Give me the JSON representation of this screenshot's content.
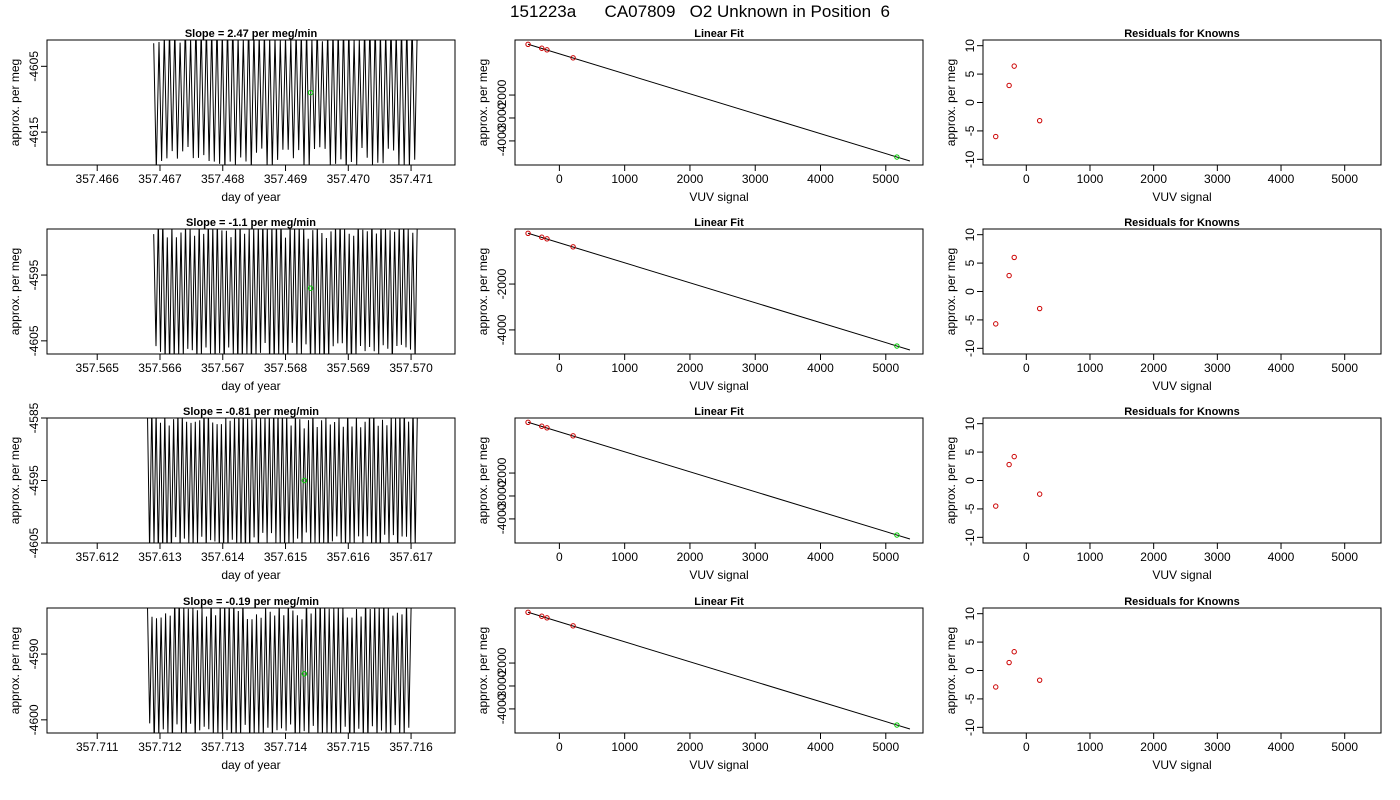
{
  "figure": {
    "title": "151223a      CA07809   O2 Unknown in Position  6"
  },
  "chart_data": [
    {
      "type": "line",
      "panel": "row1-trace",
      "title": "Slope =  2.47  per meg/min",
      "xlabel": "day of year",
      "ylabel": "approx. per meg",
      "xlim": [
        357.4652,
        357.4717
      ],
      "ylim": [
        -4620,
        -4601
      ],
      "x_ticks": [
        "357.466",
        "357.467",
        "357.468",
        "357.469",
        "357.470",
        "357.471"
      ],
      "y_ticks": [
        "-4605",
        "-4615"
      ],
      "trace": {
        "x_start": 357.4669,
        "x_end": 357.4711,
        "cycles": 50,
        "y_center": -4609,
        "y_min": -4620,
        "y_max": -4599,
        "color": "#000000"
      },
      "marker": {
        "x": 357.4694,
        "y": -4609,
        "color": "#00cc00"
      }
    },
    {
      "type": "scatter",
      "panel": "row1-fit",
      "title": "Linear Fit",
      "xlabel": "VUV signal",
      "ylabel": "approx. per meg",
      "xlim": [
        -680,
        5570
      ],
      "ylim": [
        -5050,
        400
      ],
      "x_ticks": [
        "0",
        "1000",
        "2000",
        "3000",
        "4000",
        "5000"
      ],
      "y_ticks": [
        "-2000",
        "-3000",
        "-4000"
      ],
      "fit_line": {
        "x": [
          -480,
          5370
        ],
        "y": [
          213,
          -4876
        ],
        "color": "#000000"
      },
      "knowns": {
        "x": [
          -480,
          -270,
          -190,
          210
        ],
        "y": [
          213,
          40,
          -30,
          -377
        ],
        "color": "#cc0000"
      },
      "unknown": {
        "x": 5170,
        "y": -4702,
        "color": "#00cc00"
      }
    },
    {
      "type": "scatter",
      "panel": "row1-residuals",
      "title": "Residuals for Knowns",
      "xlabel": "VUV signal",
      "ylabel": "approx. per meg",
      "xlim": [
        -680,
        5570
      ],
      "ylim": [
        -11,
        11
      ],
      "x_ticks": [
        "0",
        "1000",
        "2000",
        "3000",
        "4000",
        "5000"
      ],
      "y_ticks": [
        "-10",
        "-5",
        "0",
        "5",
        "10"
      ],
      "points": {
        "x": [
          -480,
          -270,
          -190,
          210
        ],
        "y": [
          -6.0,
          3.0,
          6.4,
          -3.2
        ],
        "color": "#cc0000"
      }
    },
    {
      "type": "line",
      "panel": "row2-trace",
      "title": "Slope =  -1.1  per meg/min",
      "xlabel": "day of year",
      "ylabel": "approx. per meg",
      "xlim": [
        357.5642,
        357.5707
      ],
      "ylim": [
        -4607,
        -4588
      ],
      "x_ticks": [
        "357.565",
        "357.566",
        "357.567",
        "357.568",
        "357.569",
        "357.570"
      ],
      "y_ticks": [
        "-4595",
        "-4605"
      ],
      "trace": {
        "x_start": 357.5659,
        "x_end": 357.5701,
        "cycles": 58,
        "y_center": -4597,
        "y_min": -4608,
        "y_max": -4587,
        "color": "#000000"
      },
      "marker": {
        "x": 357.5684,
        "y": -4597,
        "color": "#00cc00"
      }
    },
    {
      "type": "scatter",
      "panel": "row2-fit",
      "title": "Linear Fit",
      "xlabel": "VUV signal",
      "ylabel": "approx. per meg",
      "xlim": [
        -680,
        5570
      ],
      "ylim": [
        -5050,
        400
      ],
      "x_ticks": [
        "0",
        "1000",
        "2000",
        "3000",
        "4000",
        "5000"
      ],
      "y_ticks": [
        "-2000",
        "-4000"
      ],
      "fit_line": {
        "x": [
          -480,
          5370
        ],
        "y": [
          213,
          -4876
        ],
        "color": "#000000"
      },
      "knowns": {
        "x": [
          -480,
          -270,
          -190,
          210
        ],
        "y": [
          213,
          40,
          -30,
          -377
        ],
        "color": "#cc0000"
      },
      "unknown": {
        "x": 5170,
        "y": -4702,
        "color": "#00cc00"
      }
    },
    {
      "type": "scatter",
      "panel": "row2-residuals",
      "title": "Residuals for Knowns",
      "xlabel": "VUV signal",
      "ylabel": "approx. per meg",
      "xlim": [
        -680,
        5570
      ],
      "ylim": [
        -11,
        11
      ],
      "x_ticks": [
        "0",
        "1000",
        "2000",
        "3000",
        "4000",
        "5000"
      ],
      "y_ticks": [
        "-10",
        "-5",
        "0",
        "5",
        "10"
      ],
      "points": {
        "x": [
          -480,
          -270,
          -190,
          210
        ],
        "y": [
          -5.7,
          2.8,
          6.0,
          -3.0
        ],
        "color": "#cc0000"
      }
    },
    {
      "type": "line",
      "panel": "row3-trace",
      "title": "Slope =  -0.81  per meg/min",
      "xlabel": "day of year",
      "ylabel": "approx. per meg",
      "xlim": [
        357.6112,
        357.6177
      ],
      "ylim": [
        -4605,
        -4585
      ],
      "x_ticks": [
        "357.612",
        "357.613",
        "357.614",
        "357.615",
        "357.616",
        "357.617"
      ],
      "y_ticks": [
        "-4585",
        "-4595",
        "-4605"
      ],
      "trace": {
        "x_start": 357.6128,
        "x_end": 357.6171,
        "cycles": 62,
        "y_center": -4595,
        "y_min": -4606,
        "y_max": -4584,
        "color": "#000000"
      },
      "marker": {
        "x": 357.6153,
        "y": -4595,
        "color": "#00cc00"
      }
    },
    {
      "type": "scatter",
      "panel": "row3-fit",
      "title": "Linear Fit",
      "xlabel": "VUV signal",
      "ylabel": "approx. per meg",
      "xlim": [
        -680,
        5570
      ],
      "ylim": [
        -5050,
        400
      ],
      "x_ticks": [
        "0",
        "1000",
        "2000",
        "3000",
        "4000",
        "5000"
      ],
      "y_ticks": [
        "-2000",
        "-3000",
        "-4000"
      ],
      "fit_line": {
        "x": [
          -480,
          5370
        ],
        "y": [
          213,
          -4876
        ],
        "color": "#000000"
      },
      "knowns": {
        "x": [
          -480,
          -270,
          -190,
          210
        ],
        "y": [
          213,
          40,
          -30,
          -377
        ],
        "color": "#cc0000"
      },
      "unknown": {
        "x": 5170,
        "y": -4702,
        "color": "#00cc00"
      }
    },
    {
      "type": "scatter",
      "panel": "row3-residuals",
      "title": "Residuals for Knowns",
      "xlabel": "VUV signal",
      "ylabel": "approx. per meg",
      "xlim": [
        -680,
        5570
      ],
      "ylim": [
        -11,
        11
      ],
      "x_ticks": [
        "0",
        "1000",
        "2000",
        "3000",
        "4000",
        "5000"
      ],
      "y_ticks": [
        "-10",
        "-5",
        "0",
        "5",
        "10"
      ],
      "points": {
        "x": [
          -480,
          -270,
          -190,
          210
        ],
        "y": [
          -4.5,
          2.8,
          4.2,
          -2.4
        ],
        "color": "#cc0000"
      }
    },
    {
      "type": "line",
      "panel": "row4-trace",
      "title": "Slope =  -0.19  per meg/min",
      "xlabel": "day of year",
      "ylabel": "approx. per meg",
      "xlim": [
        357.7102,
        357.7167
      ],
      "ylim": [
        -4602,
        -4583
      ],
      "x_ticks": [
        "357.711",
        "357.712",
        "357.713",
        "357.714",
        "357.715",
        "357.716"
      ],
      "y_ticks": [
        "-4590",
        "-4600"
      ],
      "trace": {
        "x_start": 357.7118,
        "x_end": 357.716,
        "cycles": 58,
        "y_center": -4593,
        "y_min": -4603,
        "y_max": -4582,
        "color": "#000000"
      },
      "marker": {
        "x": 357.7143,
        "y": -4593,
        "color": "#00cc00"
      }
    },
    {
      "type": "scatter",
      "panel": "row4-fit",
      "title": "Linear Fit",
      "xlabel": "VUV signal",
      "ylabel": "approx. per meg",
      "xlim": [
        -680,
        5570
      ],
      "ylim": [
        -5050,
        400
      ],
      "x_ticks": [
        "0",
        "1000",
        "2000",
        "3000",
        "4000",
        "5000"
      ],
      "y_ticks": [
        "-2000",
        "-3000",
        "-4000"
      ],
      "fit_line": {
        "x": [
          -480,
          5370
        ],
        "y": [
          213,
          -4876
        ],
        "color": "#000000"
      },
      "knowns": {
        "x": [
          -480,
          -270,
          -190,
          210
        ],
        "y": [
          213,
          40,
          -30,
          -377
        ],
        "color": "#cc0000"
      },
      "unknown": {
        "x": 5170,
        "y": -4702,
        "color": "#00cc00"
      }
    },
    {
      "type": "scatter",
      "panel": "row4-residuals",
      "title": "Residuals for Knowns",
      "xlabel": "VUV signal",
      "ylabel": "approx. per meg",
      "xlim": [
        -680,
        5570
      ],
      "ylim": [
        -11,
        11
      ],
      "x_ticks": [
        "0",
        "1000",
        "2000",
        "3000",
        "4000",
        "5000"
      ],
      "y_ticks": [
        "-10",
        "-5",
        "0",
        "5",
        "10"
      ],
      "points": {
        "x": [
          -480,
          -270,
          -190,
          210
        ],
        "y": [
          -2.9,
          1.4,
          3.3,
          -1.7
        ],
        "color": "#cc0000"
      }
    }
  ]
}
